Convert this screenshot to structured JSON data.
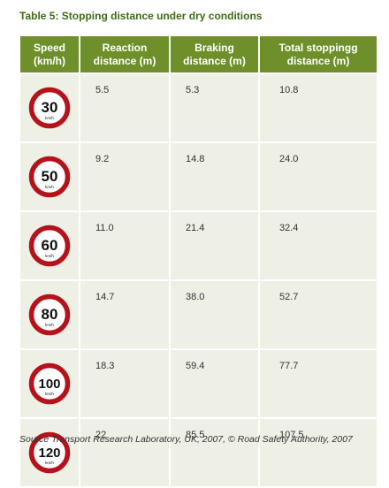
{
  "title": "Table 5: Stopping distance under dry conditions",
  "headers": {
    "speed": [
      "Speed",
      "(km/h)"
    ],
    "reaction": [
      "Reaction",
      "distance (m)"
    ],
    "braking": [
      "Braking",
      "distance (m)"
    ],
    "total": [
      "Total stoppingg",
      "distance (m)"
    ]
  },
  "sign_unit": "km/h",
  "rows": [
    {
      "speed": "30",
      "reaction": "5.5",
      "braking": "5.3",
      "total": "10.8"
    },
    {
      "speed": "50",
      "reaction": "9.2",
      "braking": "14.8",
      "total": "24.0"
    },
    {
      "speed": "60",
      "reaction": "11.0",
      "braking": "21.4",
      "total": "32.4"
    },
    {
      "speed": "80",
      "reaction": "14.7",
      "braking": "38.0",
      "total": "52.7"
    },
    {
      "speed": "100",
      "reaction": "18.3",
      "braking": "59.4",
      "total": "77.7"
    },
    {
      "speed": "120",
      "reaction": "22",
      "braking": "85.5",
      "total": "107.5"
    }
  ],
  "source": "Source Transport Research Laboratory, UK, 2007, © Road Safety Authority, 2007",
  "colors": {
    "title": "#3d6b14",
    "header_bg": "#6e8f2a",
    "cell_bg": "#eef0e6",
    "sign_ring": "#b5121b"
  },
  "icons": {
    "speed_sign": "speed-limit-sign-icon"
  }
}
